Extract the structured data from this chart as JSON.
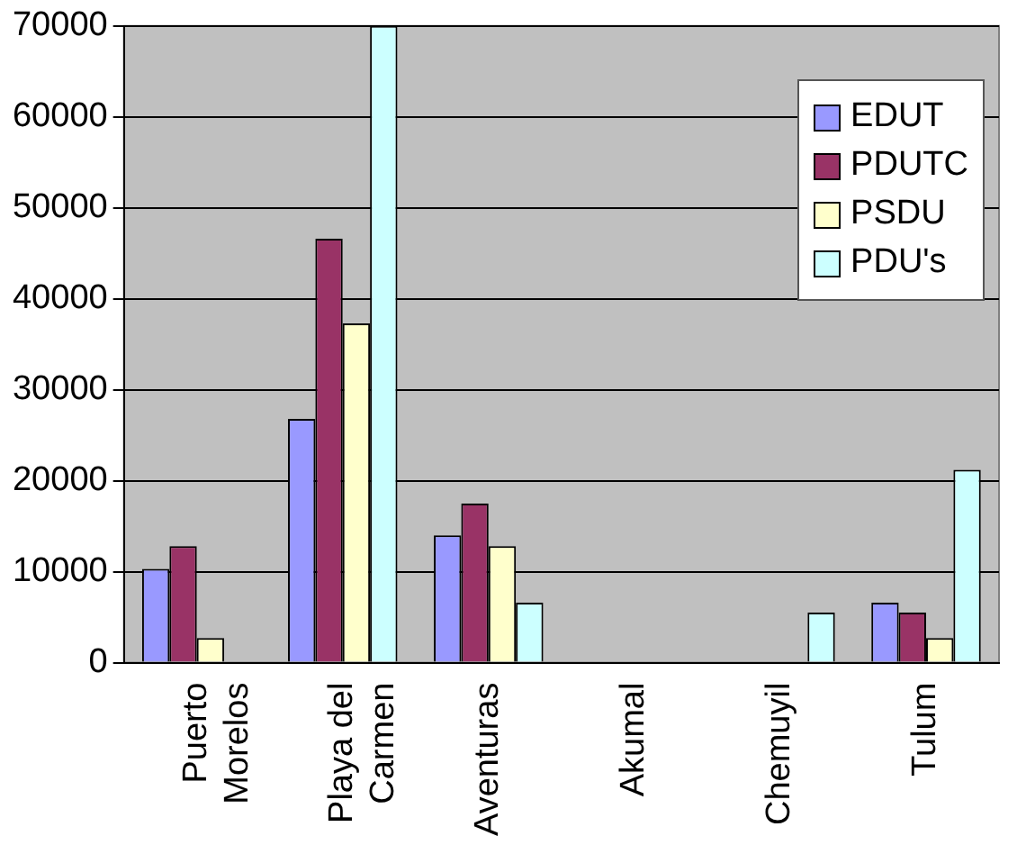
{
  "chart_data": {
    "type": "bar",
    "categories": [
      "Puerto Morelos",
      "Playa del Carmen",
      "Aventuras",
      "Akumal",
      "Chemuyil",
      "Tulum"
    ],
    "series": [
      {
        "name": "EDUT",
        "color": "#9999ff",
        "values": [
          10300,
          26800,
          14000,
          0,
          0,
          6600
        ]
      },
      {
        "name": "PDUTC",
        "color": "#993366",
        "values": [
          12800,
          46600,
          17500,
          0,
          0,
          5500
        ]
      },
      {
        "name": "PSDU",
        "color": "#ffffcc",
        "values": [
          2700,
          37300,
          12800,
          0,
          0,
          2700
        ]
      },
      {
        "name": "PDU's",
        "color": "#ccffff",
        "values": [
          0,
          70000,
          6600,
          0,
          5500,
          21200
        ]
      }
    ],
    "ylim": [
      0,
      70000
    ],
    "yticks": [
      0,
      10000,
      20000,
      30000,
      40000,
      50000,
      60000,
      70000
    ],
    "grid": "y",
    "legend": "top right"
  }
}
